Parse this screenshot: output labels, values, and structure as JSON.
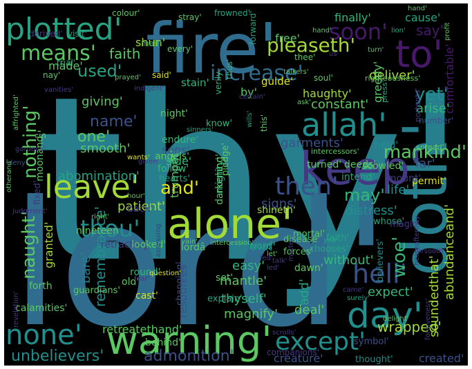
{
  "palette": {
    "yellow": "#dde318",
    "lime": "#a2da37",
    "green": "#5cc863",
    "mint": "#35b778",
    "teal": "#27a383",
    "cyan": "#218f8d",
    "steel": "#277f8e",
    "blue": "#2f6c8e",
    "indigo": "#3b518a",
    "violet": "#443a83",
    "purple": "#48196b",
    "deep": "#440154"
  },
  "words": [
    {
      "text": "thy'",
      "color": "steel"
    },
    {
      "text": "lord'",
      "color": "blue"
    },
    {
      "text": "fire'",
      "color": "blue"
    },
    {
      "text": "doth'",
      "color": "steel"
    },
    {
      "text": "keep'",
      "color": "violet"
    },
    {
      "text": "alone'",
      "color": "lime"
    },
    {
      "text": "warning'",
      "color": "green"
    },
    {
      "text": "leave'",
      "color": "lime"
    },
    {
      "text": "allah'",
      "color": "cyan"
    },
    {
      "text": "day'",
      "color": "cyan"
    },
    {
      "text": "to'",
      "color": "purple"
    },
    {
      "text": "plotted'",
      "color": "teal"
    },
    {
      "text": "none'",
      "color": "cyan"
    },
    {
      "text": "except'",
      "color": "cyan"
    },
    {
      "text": "then'",
      "color": "indigo"
    },
    {
      "text": "thou'",
      "color": "cyan"
    },
    {
      "text": "hell'",
      "color": "indigo"
    },
    {
      "text": "increase'",
      "color": "blue"
    },
    {
      "text": "soon'",
      "color": "purple"
    },
    {
      "text": "means'",
      "color": "green"
    },
    {
      "text": "pleaseth'",
      "color": "lime"
    },
    {
      "text": "nothing'",
      "color": "green"
    },
    {
      "text": "naught'",
      "color": "green"
    },
    {
      "text": "and'",
      "color": "yellow"
    },
    {
      "text": "mankind'",
      "color": "green"
    },
    {
      "text": "yet'",
      "color": "cyan"
    },
    {
      "text": "woe'",
      "color": "mint"
    },
    {
      "text": "used'",
      "color": "teal"
    },
    {
      "text": "unbelievers'",
      "color": "cyan"
    },
    {
      "text": "admonition'",
      "color": "indigo"
    },
    {
      "text": "may'",
      "color": "mint"
    },
    {
      "text": "name'",
      "color": "indigo"
    },
    {
      "text": "one'",
      "color": "green"
    },
    {
      "text": "say'",
      "color": "purple"
    },
    {
      "text": "faith",
      "color": "green"
    },
    {
      "text": "made'",
      "color": "green"
    },
    {
      "text": "comfortable'",
      "color": "purple"
    },
    {
      "text": "deliver'",
      "color": "lime"
    },
    {
      "text": "constant'",
      "color": "green"
    },
    {
      "text": "arise'",
      "color": "mint"
    },
    {
      "text": "expect'",
      "color": "mint"
    },
    {
      "text": "abundanceand'",
      "color": "lime"
    },
    {
      "text": "soundedthat'",
      "color": "lime"
    },
    {
      "text": "remembrance'",
      "color": "cyan"
    },
    {
      "text": "giving'",
      "color": "green"
    },
    {
      "text": "smooth'",
      "color": "green"
    },
    {
      "text": "abomination'",
      "color": "teal"
    },
    {
      "text": "patient'",
      "color": "lime"
    },
    {
      "text": "granted'",
      "color": "lime"
    },
    {
      "text": "bare'",
      "color": "steel"
    },
    {
      "text": "easy'",
      "color": "mint"
    },
    {
      "text": "mantle'",
      "color": "green"
    },
    {
      "text": "thyself'",
      "color": "mint"
    },
    {
      "text": "magnify'",
      "color": "green"
    },
    {
      "text": "resources'",
      "color": "indigo"
    },
    {
      "text": "deal'",
      "color": "green"
    },
    {
      "text": "wrapped'",
      "color": "lime"
    },
    {
      "text": "created'",
      "color": "indigo"
    },
    {
      "text": "creature'",
      "color": "indigo"
    },
    {
      "text": "distress'",
      "color": "cyan"
    },
    {
      "text": "without'",
      "color": "mint"
    },
    {
      "text": "signs'",
      "color": "indigo"
    },
    {
      "text": "life'",
      "color": "cyan"
    },
    {
      "text": "far'",
      "color": "indigo"
    },
    {
      "text": "garments'",
      "color": "indigo"
    },
    {
      "text": "trumpet'",
      "color": "green"
    },
    {
      "text": "finally'",
      "color": "mint"
    },
    {
      "text": "cause'",
      "color": "teal"
    },
    {
      "text": "free'",
      "color": "green"
    },
    {
      "text": "greedy'",
      "color": "green"
    },
    {
      "text": "haughty'",
      "color": "lime"
    },
    {
      "text": "sons'",
      "color": "indigo"
    },
    {
      "text": "side'",
      "color": "mint"
    },
    {
      "text": "shun'",
      "color": "lime"
    },
    {
      "text": "by'",
      "color": "green"
    },
    {
      "text": "stain'",
      "color": "mint"
    },
    {
      "text": "guide'",
      "color": "yellow"
    },
    {
      "text": "retreatethand'",
      "color": "green"
    },
    {
      "text": "add'",
      "color": "teal"
    },
    {
      "text": "that'",
      "color": "cyan"
    },
    {
      "text": "night'",
      "color": "green"
    },
    {
      "text": "angels'",
      "color": "green"
    },
    {
      "text": "endure'",
      "color": "mint"
    },
    {
      "text": "follow'",
      "color": "mint"
    },
    {
      "text": "mighty'",
      "color": "teal"
    },
    {
      "text": "darkening'",
      "color": "green"
    },
    {
      "text": "turned'",
      "color": "green"
    },
    {
      "text": "intend'",
      "color": "teal"
    },
    {
      "text": "permit'",
      "color": "yellow"
    },
    {
      "text": "mount'",
      "color": "violet"
    },
    {
      "text": "deeds'",
      "color": "green"
    },
    {
      "text": "scowled'",
      "color": "green"
    },
    {
      "text": "held'",
      "color": "cyan"
    },
    {
      "text": "lordâ",
      "color": "green"
    },
    {
      "text": "shineth'",
      "color": "lime"
    },
    {
      "text": "retractory",
      "color": "violet"
    },
    {
      "text": "nineteen",
      "color": "green"
    },
    {
      "text": "looked'",
      "color": "green"
    },
    {
      "text": "back'",
      "color": "violet"
    },
    {
      "text": "round'",
      "color": "mint"
    },
    {
      "text": "old'",
      "color": "green"
    },
    {
      "text": "cast'",
      "color": "yellow"
    },
    {
      "text": "set'",
      "color": "green"
    },
    {
      "text": "explain'",
      "color": "teal"
    },
    {
      "text": "dawn'",
      "color": "green"
    },
    {
      "text": "word'",
      "color": "teal"
    },
    {
      "text": "mortal'",
      "color": "green"
    },
    {
      "text": "disease'",
      "color": "green"
    },
    {
      "text": "forces'",
      "color": "green"
    },
    {
      "text": "believers'",
      "color": "cyan"
    },
    {
      "text": "symbol'",
      "color": "indigo"
    },
    {
      "text": "thought'",
      "color": "cyan"
    },
    {
      "text": "companions'",
      "color": "violet"
    },
    {
      "text": "behind'",
      "color": "green"
    },
    {
      "text": "changing'",
      "color": "indigo"
    },
    {
      "text": "forth",
      "color": "green"
    },
    {
      "text": "calamities'",
      "color": "green"
    },
    {
      "text": "guardians'",
      "color": "green"
    },
    {
      "text": "hearts'",
      "color": "teal"
    },
    {
      "text": "pledge'",
      "color": "green"
    },
    {
      "text": "chooses'",
      "color": "teal"
    },
    {
      "text": "whose'",
      "color": "teal"
    },
    {
      "text": "faith'",
      "color": "teal"
    },
    {
      "text": "magic'",
      "color": "violet"
    },
    {
      "text": "s'",
      "color": "green"
    },
    {
      "text": "moonand'",
      "color": "green"
    },
    {
      "text": "fixed'",
      "color": "violet"
    },
    {
      "text": "know'",
      "color": "mint"
    },
    {
      "text": "thus'",
      "color": "mint"
    },
    {
      "text": "verily",
      "color": "mint"
    },
    {
      "text": "stray'",
      "color": "green"
    },
    {
      "text": "man'",
      "color": "teal"
    },
    {
      "text": "every'",
      "color": "green"
    },
    {
      "text": "visit'",
      "color": "teal"
    },
    {
      "text": "derived'",
      "color": "violet"
    },
    {
      "text": "nay'",
      "color": "green"
    },
    {
      "text": "trial'",
      "color": "mint"
    },
    {
      "text": "said'",
      "color": "yellow"
    },
    {
      "text": "soul'",
      "color": "green"
    },
    {
      "text": "this'",
      "color": "green"
    },
    {
      "text": "forward'",
      "color": "teal"
    },
    {
      "text": "thee'",
      "color": "green"
    },
    {
      "text": "colour'",
      "color": "green"
    },
    {
      "text": "frowned'",
      "color": "teal"
    },
    {
      "text": "hand'",
      "color": "green"
    },
    {
      "text": "turn'",
      "color": "green"
    },
    {
      "text": "lion'",
      "color": "teal"
    },
    {
      "text": "profit",
      "color": "green"
    },
    {
      "text": "press'",
      "color": "teal"
    },
    {
      "text": "portents'",
      "color": "violet"
    },
    {
      "text": "righteousness'",
      "color": "green"
    },
    {
      "text": "number'",
      "color": "indigo"
    },
    {
      "text": "spread'",
      "color": "green"
    },
    {
      "text": "intercessors'",
      "color": "green"
    },
    {
      "text": "given'",
      "color": "violet"
    },
    {
      "text": "wants'",
      "color": "yellow"
    },
    {
      "text": "gardens'",
      "color": "violet"
    },
    {
      "text": "deny'",
      "color": "indigo"
    },
    {
      "text": "affrighted'",
      "color": "green"
    },
    {
      "text": "judgment'",
      "color": "violet"
    },
    {
      "text": "right'",
      "color": "green"
    },
    {
      "text": "hour'",
      "color": "green"
    },
    {
      "text": "vain'",
      "color": "green"
    },
    {
      "text": "intercession'",
      "color": "green"
    },
    {
      "text": "hell",
      "color": "teal"
    },
    {
      "text": "yea'",
      "color": "teal"
    },
    {
      "text": "question'",
      "color": "yellow"
    },
    {
      "text": "fear'",
      "color": "violet"
    },
    {
      "text": "surely'",
      "color": "teal"
    },
    {
      "text": "came'",
      "color": "violet"
    },
    {
      "text": "scrolls'",
      "color": "violet"
    },
    {
      "text": "revelation'",
      "color": "violet"
    },
    {
      "text": "delight'",
      "color": "green"
    },
    {
      "text": "forgiveness'",
      "color": "violet"
    },
    {
      "text": "prayed'",
      "color": "green"
    },
    {
      "text": "vanities'",
      "color": "violet"
    },
    {
      "text": "indigent'",
      "color": "violet"
    },
    {
      "text": "talkers'",
      "color": "green"
    },
    {
      "text": "ask'",
      "color": "green"
    },
    {
      "text": "wills'",
      "color": "teal"
    },
    {
      "text": "certain'",
      "color": "violet"
    },
    {
      "text": "sinners'",
      "color": "teal"
    },
    {
      "text": "otherand'",
      "color": "green"
    },
    {
      "text": "matter'",
      "color": "violet"
    },
    {
      "text": "led'",
      "color": "violet"
    },
    {
      "text": "fed'",
      "color": "violet"
    },
    {
      "text": "talk'",
      "color": "violet"
    },
    {
      "text": "let'",
      "color": "green"
    },
    {
      "text": "hand'",
      "color": "green"
    },
    {
      "text": "heareafterowy",
      "color": "violet"
    },
    {
      "text": "forsooth'",
      "color": "violet"
    },
    {
      "text": "assessing",
      "color": "violet"
    },
    {
      "text": "us'",
      "color": "violet"
    }
  ]
}
